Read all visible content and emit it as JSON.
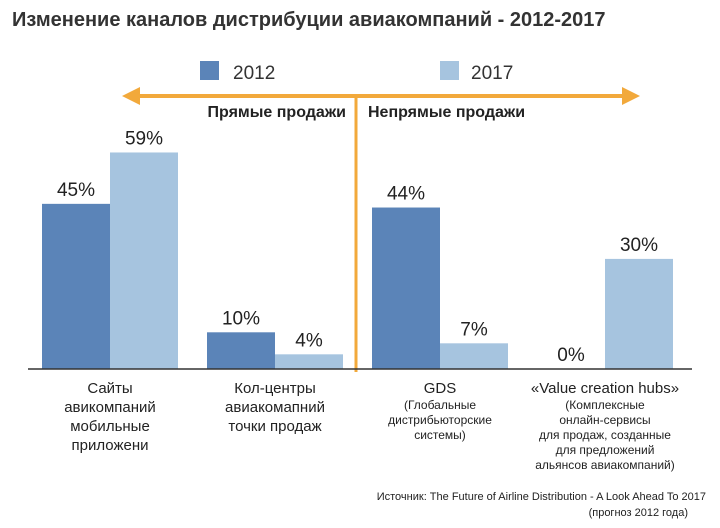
{
  "colors": {
    "series_2012": "#5b84b8",
    "series_2017": "#a6c4df",
    "arrow": "#f2a93b",
    "axis": "#333333"
  },
  "chart_data": {
    "type": "bar",
    "title": "Изменение каналов дистрибуции авиакомпаний - 2012-2017",
    "xlabel": "",
    "ylabel": "",
    "ylim": [
      0,
      65
    ],
    "grid": false,
    "legend": "top-center",
    "categories": [
      "Сайты авикомпаний мобильные приложени",
      "Кол-центры авиакомапний точки продаж",
      "GDS",
      "«Value creation hubs»"
    ],
    "category_labels": [
      {
        "main": [
          "Сайты",
          "авикомпаний",
          "мобильные",
          "приложени"
        ],
        "sub": []
      },
      {
        "main": [
          "Кол-центры",
          "авиакомапний",
          "точки продаж"
        ],
        "sub": []
      },
      {
        "main": [
          "GDS"
        ],
        "sub": [
          "(Глобальные",
          "дистрибьюторские",
          "системы)"
        ]
      },
      {
        "main": [
          "«Value creation hubs»"
        ],
        "sub": [
          "(Комплексные",
          "онлайн-сервисы",
          "для продаж, созданные",
          "для предложений",
          "альянсов авиакомпаний)"
        ]
      }
    ],
    "series": [
      {
        "name": "2012",
        "values": [
          45,
          10,
          44,
          0
        ],
        "labels": [
          "45%",
          "10%",
          "44%",
          "0%"
        ]
      },
      {
        "name": "2017",
        "values": [
          59,
          4,
          7,
          30
        ],
        "labels": [
          "59%",
          "4%",
          "7%",
          "30%"
        ]
      }
    ],
    "sections": [
      {
        "label": "Прямые продажи"
      },
      {
        "label": "Непрямые продажи"
      }
    ],
    "source": "Источник: The Future of Airline Distribution - A Look Ahead To 2017",
    "source_note": "(прогноз 2012 года)"
  }
}
